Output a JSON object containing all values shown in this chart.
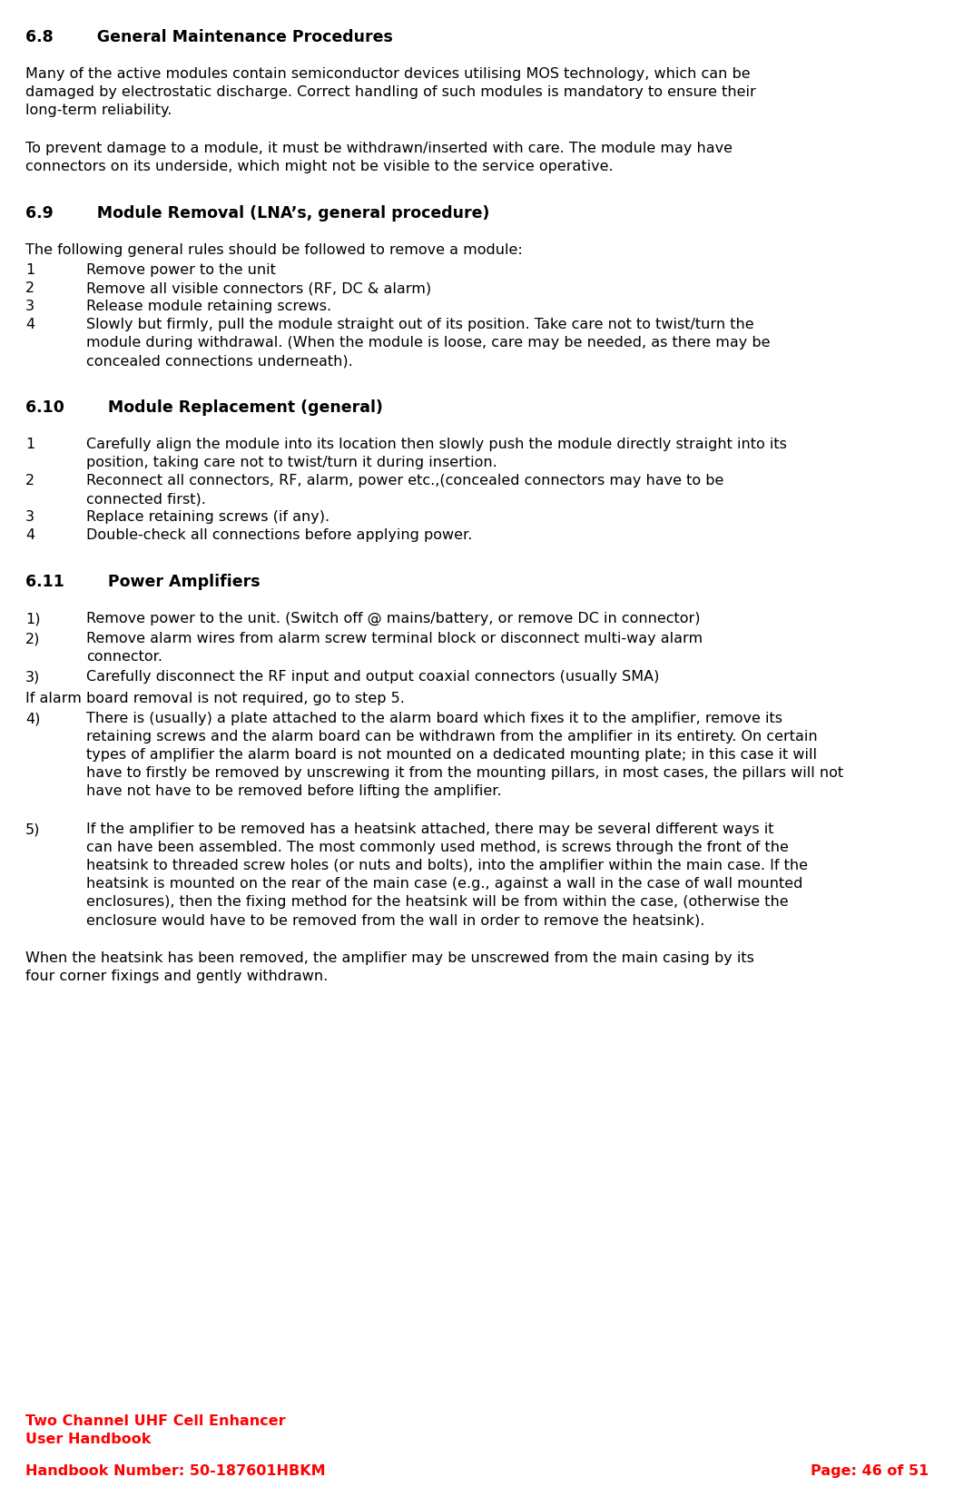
{
  "bg_color": "#ffffff",
  "text_color": "#000000",
  "red_color": "#ff0000",
  "title_68": "6.8        General Maintenance Procedures",
  "title_69": "6.9        Module Removal (LNA’s, general procedure)",
  "title_610": "6.10        Module Replacement (general)",
  "title_611": "6.11        Power Amplifiers",
  "para1_lines": [
    "Many of the active modules contain semiconductor devices utilising MOS technology, which can be",
    "damaged by electrostatic discharge. Correct handling of such modules is mandatory to ensure their",
    "long-term reliability."
  ],
  "para2_lines": [
    "To prevent damage to a module, it must be withdrawn/inserted with care. The module may have",
    "connectors on its underside, which might not be visible to the service operative."
  ],
  "para69_intro": "The following general rules should be followed to remove a module:",
  "list69": [
    {
      "num": "1",
      "lines": [
        "Remove power to the unit"
      ]
    },
    {
      "num": "2",
      "lines": [
        "Remove all visible connectors (RF, DC & alarm)"
      ]
    },
    {
      "num": "3",
      "lines": [
        "Release module retaining screws."
      ]
    },
    {
      "num": "4",
      "lines": [
        "Slowly but firmly, pull the module straight out of its position. Take care not to twist/turn the",
        "module during withdrawal. (When the module is loose, care may be needed, as there may be",
        "concealed connections underneath)."
      ]
    }
  ],
  "list610": [
    {
      "num": "1",
      "lines": [
        "Carefully align the module into its location then slowly push the module directly straight into its",
        "position, taking care not to twist/turn it during insertion."
      ]
    },
    {
      "num": "2",
      "lines": [
        "Reconnect all connectors, RF, alarm, power etc.,(concealed connectors may have to be",
        "connected first)."
      ]
    },
    {
      "num": "3",
      "lines": [
        "Replace retaining screws (if any)."
      ]
    },
    {
      "num": "4",
      "lines": [
        "Double-check all connections before applying power."
      ]
    }
  ],
  "list611_first": [
    {
      "num": "1)",
      "lines": [
        "Remove power to the unit. (Switch off @ mains/battery, or remove DC in connector)"
      ]
    },
    {
      "num": "2)",
      "lines": [
        "Remove alarm wires from alarm screw terminal block or disconnect multi-way alarm",
        "connector."
      ]
    },
    {
      "num": "3)",
      "lines": [
        "Carefully disconnect the RF input and output coaxial connectors (usually SMA)"
      ]
    }
  ],
  "if_alarm_line": "If alarm board removal is not required, go to step 5.",
  "item4_lines": [
    "There is (usually) a plate attached to the alarm board which fixes it to the amplifier, remove its",
    "retaining screws and the alarm board can be withdrawn from the amplifier in its entirety. On certain",
    "types of amplifier the alarm board is not mounted on a dedicated mounting plate; in this case it will",
    "have to firstly be removed by unscrewing it from the mounting pillars, in most cases, the pillars will not",
    "have not have to be removed before lifting the amplifier."
  ],
  "item5_lines": [
    "If the amplifier to be removed has a heatsink attached, there may be several different ways it",
    "can have been assembled. The most commonly used method, is screws through the front of the",
    "heatsink to threaded screw holes (or nuts and bolts), into the amplifier within the main case. If the",
    "heatsink is mounted on the rear of the main case (e.g., against a wall in the case of wall mounted",
    "enclosures), then the fixing method for the heatsink will be from within the case, (otherwise the",
    "enclosure would have to be removed from the wall in order to remove the heatsink)."
  ],
  "last_para_lines": [
    "When the heatsink has been removed, the amplifier may be unscrewed from the main casing by its",
    "four corner fixings and gently withdrawn."
  ],
  "footer_line1": "Two Channel UHF Cell Enhancer",
  "footer_line2": "User Handbook",
  "footer_handbook": "Handbook Number: 50-187601HBKM",
  "footer_page": "Page: 46 of 51"
}
